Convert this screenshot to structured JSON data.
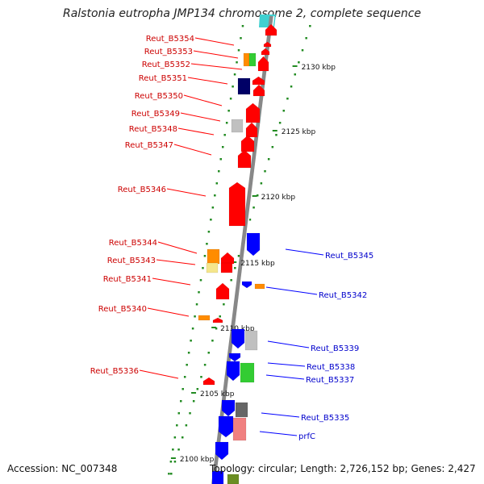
{
  "title": "Ralstonia eutropha JMP134 chromosome 2, complete sequence",
  "footer": {
    "accession": "Accession: NC_007348",
    "topology": "Topology: circular; Length: 2,726,152 bp; Genes: 2,427"
  },
  "ruler": [
    "2130 kbp",
    "2125 kbp",
    "2120 kbp",
    "2115 kbp",
    "2110 kbp",
    "2105 kbp",
    "2100 kbp"
  ],
  "left_genes": [
    "Reut_B5354",
    "Reut_B5353",
    "Reut_B5352",
    "Reut_B5351",
    "Reut_B5350",
    "Reut_B5349",
    "Reut_B5348",
    "Reut_B5347",
    "Reut_B5346",
    "Reut_B5344",
    "Reut_B5343",
    "Reut_B5341",
    "Reut_B5340",
    "Reut_B5336"
  ],
  "right_genes": [
    "Reut_B5345",
    "Reut_B5342",
    "Reut_B5339",
    "Reut_B5338",
    "Reut_B5337",
    "Reut_B5335",
    "prfC"
  ],
  "colors": {
    "forward_strand": "#ff0000",
    "reverse_strand": "#0000ff",
    "left_label": "#cc0000",
    "right_label": "#0000cc",
    "backbone": "#888888",
    "dots": "#228b22"
  }
}
